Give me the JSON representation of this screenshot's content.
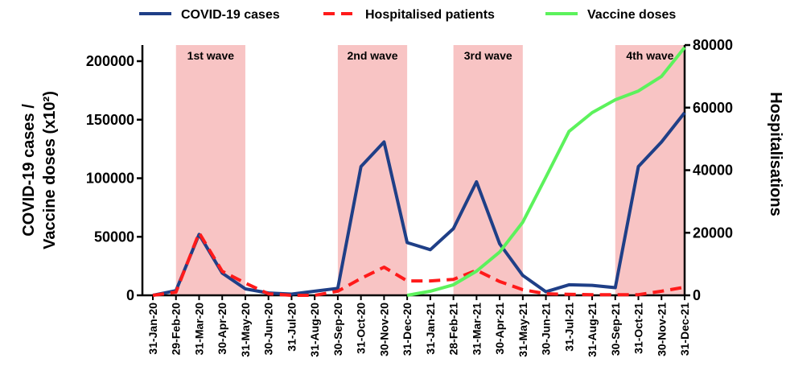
{
  "chart_data": {
    "type": "line",
    "categories": [
      "31-Jan-20",
      "29-Feb-20",
      "31-Mar-20",
      "30-Apr-20",
      "31-May-20",
      "30-Jun-20",
      "31-Jul-20",
      "31-Aug-20",
      "30-Sep-20",
      "31-Oct-20",
      "30-Nov-20",
      "31-Dec-20",
      "31-Jan-21",
      "28-Feb-21",
      "31-Mar-21",
      "30-Apr-21",
      "31-May-21",
      "30-Jun-21",
      "31-Jul-21",
      "31-Aug-21",
      "30-Sep-21",
      "31-Oct-21",
      "30-Nov-21",
      "31-Dec-21"
    ],
    "series": [
      {
        "name": "COVID-19 cases",
        "color": "#1f3f87",
        "dash": false,
        "axis": "y",
        "values": [
          0,
          4000,
          52000,
          19000,
          5500,
          2000,
          1000,
          3500,
          6000,
          110000,
          131000,
          45000,
          39000,
          57000,
          97000,
          44000,
          17000,
          3000,
          9000,
          8500,
          6500,
          110000,
          131000,
          156000
        ]
      },
      {
        "name": "Hospitalised patients",
        "color": "#ff1a1a",
        "dash": true,
        "axis": "y2",
        "values": [
          0,
          1000,
          20000,
          7700,
          3900,
          500,
          0,
          0,
          1300,
          5400,
          9000,
          4600,
          4600,
          5100,
          8000,
          4400,
          1800,
          500,
          300,
          200,
          200,
          200,
          1300,
          2600
        ]
      },
      {
        "name": "Vaccine doses",
        "color": "#5cf25c",
        "dash": false,
        "axis": "y",
        "values": [
          null,
          null,
          null,
          null,
          null,
          null,
          null,
          null,
          null,
          null,
          null,
          0,
          3500,
          9000,
          20600,
          37000,
          62500,
          101000,
          140000,
          156000,
          167000,
          174500,
          187000,
          211700
        ]
      }
    ],
    "ylabel": [
      "COVID-19 cases /",
      "Vaccine doses (x10²)"
    ],
    "y2label": "Hospitalisations",
    "ylim": [
      0,
      213750
    ],
    "yticks": [
      0,
      50000,
      100000,
      150000,
      200000
    ],
    "y2lim": [
      0,
      80000
    ],
    "y2ticks": [
      0,
      20000,
      40000,
      60000,
      80000
    ],
    "waves": [
      {
        "label": "1st wave",
        "from": 1,
        "to": 4,
        "color": "#f8c4c4"
      },
      {
        "label": "2nd wave",
        "from": 8,
        "to": 11,
        "color": "#f8c4c4"
      },
      {
        "label": "3rd wave",
        "from": 13,
        "to": 16,
        "color": "#f8c4c4"
      },
      {
        "label": "4th wave",
        "from": 20,
        "to": 23,
        "color": "#f8c4c4"
      }
    ]
  }
}
